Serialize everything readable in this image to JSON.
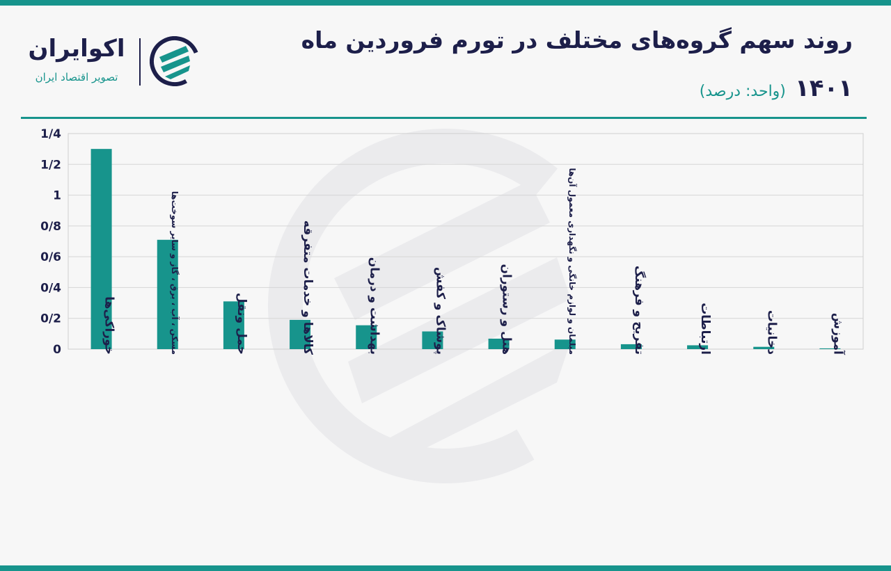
{
  "brand": {
    "name": "اکوایران",
    "tagline": "تصویر اقتصاد ایران",
    "accent_color": "#17948c",
    "dark_color": "#1d1f4a"
  },
  "header": {
    "title": "روند سهم گروه‌های مختلف در تورم فروردین ماه",
    "year": "۱۴۰۱",
    "unit": "(واحد: درصد)"
  },
  "chart_data": {
    "type": "bar",
    "categories": [
      "خوراکی‌ها",
      "مسکن ، آب ، برق ، گاز و سایر سوخت‌ها",
      "حمل ونقل",
      "کالاها و خدمات متفرقه",
      "بهداشت و درمان",
      "پوشاک و کفش",
      "هتل و رستوران",
      "مبلمان و لوازم خانگی و نگهداری معمول آن‌ها",
      "تفریح و فرهنگ",
      "ارتباطات",
      "دخانیات",
      "آموزش"
    ],
    "values": [
      1.3,
      0.71,
      0.31,
      0.19,
      0.155,
      0.115,
      0.068,
      0.062,
      0.032,
      0.025,
      0.015,
      0.005
    ],
    "ylim": [
      0,
      1.4
    ],
    "yticks": [
      0,
      0.2,
      0.4,
      0.6,
      0.8,
      1,
      1.2,
      1.4
    ],
    "ytick_labels": [
      "0",
      "0/2",
      "0/4",
      "0/6",
      "0/8",
      "1",
      "1/2",
      "1/4"
    ],
    "bar_color": "#17948c",
    "grid": true,
    "title": "",
    "xlabel": "",
    "ylabel": ""
  }
}
